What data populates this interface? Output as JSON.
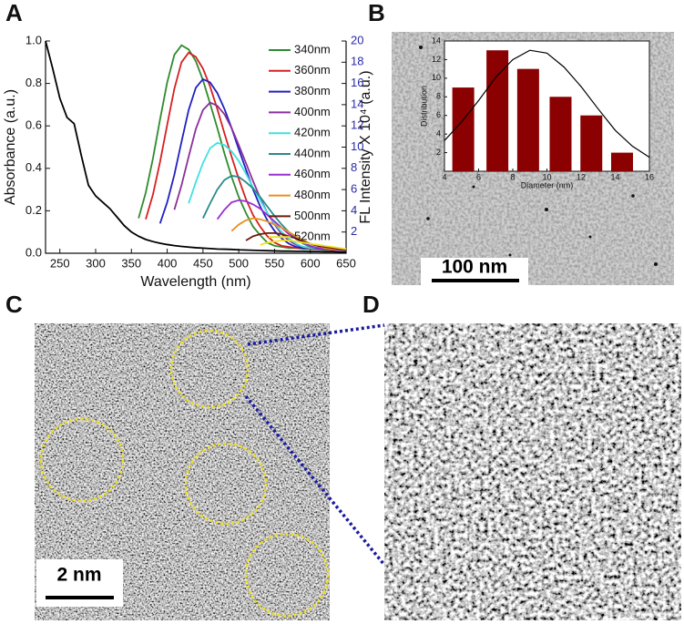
{
  "chart_data": [
    {
      "type": "line",
      "xlabel": "Wavelength (nm)",
      "ylabel": "Absorbance (a.u.)",
      "y2label": "FL Intensity X 10⁴ (a.u.)",
      "xlim": [
        230,
        650
      ],
      "xticks": [
        250,
        300,
        350,
        400,
        450,
        500,
        550,
        600,
        650
      ],
      "ylim": [
        0,
        1
      ],
      "yticks": [
        {
          "value": 0,
          "label": "0.0"
        },
        0.2,
        0.4,
        0.6,
        0.8,
        {
          "value": 1,
          "label": "1.0"
        }
      ],
      "y2lim": [
        0,
        20
      ],
      "y2ticks": [
        2,
        4,
        6,
        8,
        10,
        12,
        14,
        16,
        18,
        20
      ],
      "legend": "upper right",
      "x": [
        230,
        240,
        250,
        260,
        270,
        280,
        290,
        300,
        310,
        320,
        330,
        340,
        350,
        360,
        370,
        380,
        390,
        400,
        410,
        420,
        430,
        440,
        450,
        460,
        470,
        480,
        490,
        500,
        510,
        520,
        530,
        540,
        550,
        560,
        570,
        580,
        590,
        600,
        610,
        620,
        630,
        640,
        650
      ],
      "series": [
        {
          "color": "#000000",
          "values": [
            1.0,
            0.87,
            0.73,
            0.64,
            0.61,
            0.46,
            0.32,
            0.27,
            0.24,
            0.21,
            0.17,
            0.13,
            0.1,
            0.08,
            0.065,
            0.055,
            0.047,
            0.041,
            0.036,
            0.032,
            0.029,
            0.026,
            0.024,
            0.022,
            0.02,
            0.019,
            0.018,
            0.016,
            0.015,
            0.014,
            0.013,
            0.012,
            0.011,
            0.01,
            0.01,
            0.009,
            0.009,
            0.008,
            0.008,
            0.007,
            0.007,
            0.006,
            0.006
          ]
        },
        {
          "name": "340nm",
          "color": "#2e8b2e",
          "axis": "y2",
          "values": [
            null,
            null,
            null,
            null,
            null,
            null,
            null,
            null,
            null,
            null,
            null,
            null,
            null,
            3.3,
            5.7,
            8.9,
            12.6,
            16.1,
            18.7,
            19.6,
            19.2,
            18.1,
            16.3,
            14.1,
            11.8,
            9.4,
            7.2,
            5.3,
            3.8,
            2.5,
            1.7,
            1.0,
            0.7,
            0.6,
            0.5,
            0.5,
            0.4,
            0.4,
            0.4,
            0.3,
            0.3,
            0.3,
            0.3
          ]
        },
        {
          "name": "360nm",
          "color": "#d62020",
          "axis": "y2",
          "values": [
            null,
            null,
            null,
            null,
            null,
            null,
            null,
            null,
            null,
            null,
            null,
            null,
            null,
            null,
            3.2,
            5.5,
            8.6,
            12.1,
            15.5,
            18.0,
            18.9,
            18.5,
            17.4,
            15.7,
            13.6,
            11.3,
            9.1,
            7.0,
            5.1,
            3.6,
            2.5,
            1.6,
            1.0,
            0.7,
            0.6,
            0.5,
            0.5,
            0.4,
            0.4,
            0.4,
            0.3,
            0.3,
            0.3
          ]
        },
        {
          "name": "380nm",
          "color": "#2020c0",
          "axis": "y2",
          "values": [
            null,
            null,
            null,
            null,
            null,
            null,
            null,
            null,
            null,
            null,
            null,
            null,
            null,
            null,
            null,
            null,
            2.8,
            4.8,
            7.4,
            10.5,
            13.5,
            15.6,
            16.4,
            16.1,
            15.1,
            13.6,
            11.8,
            9.8,
            7.9,
            6.0,
            4.4,
            3.1,
            2.1,
            1.4,
            0.9,
            0.6,
            0.5,
            0.5,
            0.4,
            0.4,
            0.4,
            0.3,
            0.3
          ]
        },
        {
          "name": "400nm",
          "color": "#8b2f9b",
          "axis": "y2",
          "values": [
            null,
            null,
            null,
            null,
            null,
            null,
            null,
            null,
            null,
            null,
            null,
            null,
            null,
            null,
            null,
            null,
            null,
            null,
            4.1,
            6.4,
            9.1,
            11.7,
            13.5,
            14.2,
            13.9,
            13.1,
            11.8,
            10.2,
            8.5,
            6.8,
            5.2,
            3.8,
            2.7,
            1.8,
            1.2,
            0.8,
            0.6,
            0.5,
            0.5,
            0.4,
            0.4,
            0.3,
            0.3
          ]
        },
        {
          "name": "420nm",
          "color": "#40e0e0",
          "axis": "y2",
          "values": [
            null,
            null,
            null,
            null,
            null,
            null,
            null,
            null,
            null,
            null,
            null,
            null,
            null,
            null,
            null,
            null,
            null,
            null,
            null,
            null,
            4.7,
            6.7,
            8.5,
            9.9,
            10.4,
            10.2,
            9.6,
            8.7,
            7.5,
            6.2,
            5.0,
            3.8,
            2.8,
            2.0,
            1.4,
            0.9,
            0.6,
            0.5,
            0.5,
            0.4,
            0.4,
            0.3,
            0.3
          ]
        },
        {
          "name": "440nm",
          "color": "#2a8a8a",
          "axis": "y2",
          "values": [
            null,
            null,
            null,
            null,
            null,
            null,
            null,
            null,
            null,
            null,
            null,
            null,
            null,
            null,
            null,
            null,
            null,
            null,
            null,
            null,
            null,
            null,
            3.3,
            4.7,
            6.0,
            6.9,
            7.3,
            7.2,
            6.7,
            6.1,
            5.3,
            4.4,
            3.5,
            2.7,
            2.0,
            1.4,
            0.9,
            0.6,
            0.5,
            0.5,
            0.4,
            0.4,
            0.3
          ]
        },
        {
          "name": "460nm",
          "color": "#9a2fd0",
          "axis": "y2",
          "values": [
            null,
            null,
            null,
            null,
            null,
            null,
            null,
            null,
            null,
            null,
            null,
            null,
            null,
            null,
            null,
            null,
            null,
            null,
            null,
            null,
            null,
            null,
            null,
            null,
            3.2,
            4.1,
            4.8,
            5.0,
            4.9,
            4.6,
            4.2,
            3.6,
            3.0,
            2.4,
            1.8,
            1.4,
            1.0,
            0.7,
            0.5,
            0.4,
            0.4,
            0.3,
            0.3
          ]
        },
        {
          "name": "480nm",
          "color": "#e89020",
          "axis": "y2",
          "values": [
            null,
            null,
            null,
            null,
            null,
            null,
            null,
            null,
            null,
            null,
            null,
            null,
            null,
            null,
            null,
            null,
            null,
            null,
            null,
            null,
            null,
            null,
            null,
            null,
            null,
            null,
            2.1,
            2.7,
            3.1,
            3.3,
            3.2,
            3.0,
            2.7,
            2.4,
            2.0,
            1.6,
            1.2,
            0.9,
            0.7,
            0.5,
            0.4,
            0.4,
            0.3
          ]
        },
        {
          "name": "500nm",
          "color": "#6b1a10",
          "axis": "y2",
          "values": [
            null,
            null,
            null,
            null,
            null,
            null,
            null,
            null,
            null,
            null,
            null,
            null,
            null,
            null,
            null,
            null,
            null,
            null,
            null,
            null,
            null,
            null,
            null,
            null,
            null,
            null,
            null,
            null,
            1.2,
            1.6,
            1.8,
            1.9,
            1.9,
            1.8,
            1.6,
            1.4,
            1.1,
            0.9,
            0.7,
            0.6,
            0.5,
            0.4,
            0.3
          ]
        },
        {
          "name": "520nm",
          "color": "#f0e020",
          "axis": "y2",
          "values": [
            null,
            null,
            null,
            null,
            null,
            null,
            null,
            null,
            null,
            null,
            null,
            null,
            null,
            null,
            null,
            null,
            null,
            null,
            null,
            null,
            null,
            null,
            null,
            null,
            null,
            null,
            null,
            null,
            null,
            null,
            0.8,
            1.0,
            1.1,
            1.2,
            1.2,
            1.1,
            1.0,
            0.9,
            0.8,
            0.7,
            0.6,
            0.5,
            0.4
          ]
        }
      ]
    },
    {
      "type": "bar",
      "xlabel": "Diameter (nm)",
      "ylabel": "Distribution",
      "xlim": [
        4,
        16
      ],
      "xticks": [
        4,
        6,
        8,
        10,
        12,
        14,
        16
      ],
      "ylim": [
        0,
        14
      ],
      "yticks": [
        2,
        4,
        6,
        8,
        10,
        12,
        14
      ],
      "x": [
        5.1,
        7.1,
        8.9,
        10.8,
        12.6,
        14.4
      ],
      "values": [
        9,
        13,
        11,
        8,
        6,
        2
      ],
      "color": "#8b0000",
      "fit": {
        "x": [
          4,
          5,
          6,
          7,
          8,
          9,
          10,
          11,
          12,
          13,
          14,
          15,
          16
        ],
        "values": [
          3.3,
          5.3,
          7.6,
          10.1,
          12.0,
          13.0,
          12.7,
          11.2,
          9.1,
          6.7,
          4.4,
          2.7,
          1.5
        ],
        "color": "#000000"
      }
    }
  ],
  "panel_labels": [
    "A",
    "B",
    "C",
    "D"
  ],
  "scale_bars": [
    "100 nm",
    "2 nm"
  ]
}
